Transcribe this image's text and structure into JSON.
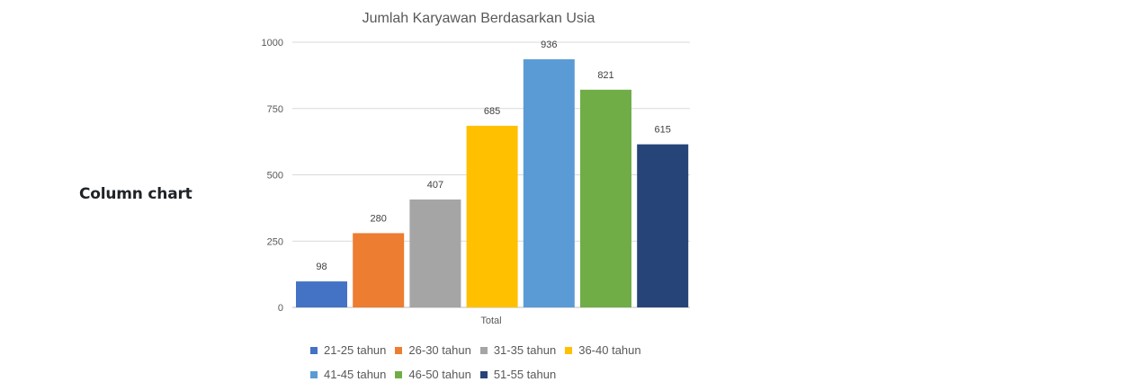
{
  "page": {
    "side_label": "Column chart"
  },
  "chart_data": {
    "type": "bar",
    "title": "Jumlah Karyawan Berdasarkan Usia",
    "xlabel": "",
    "ylabel": "",
    "categories": [
      "Total"
    ],
    "ylim": [
      0,
      1000
    ],
    "yticks": [
      0,
      250,
      500,
      750,
      1000
    ],
    "grid": true,
    "legend_position": "bottom",
    "series": [
      {
        "name": "21-25 tahun",
        "values": [
          98
        ],
        "color": "#4472C4"
      },
      {
        "name": "26-30 tahun",
        "values": [
          280
        ],
        "color": "#ED7D31"
      },
      {
        "name": "31-35 tahun",
        "values": [
          407
        ],
        "color": "#A5A5A5"
      },
      {
        "name": "36-40 tahun",
        "values": [
          685
        ],
        "color": "#FFC000"
      },
      {
        "name": "41-45 tahun",
        "values": [
          936
        ],
        "color": "#5B9BD5"
      },
      {
        "name": "46-50 tahun",
        "values": [
          821
        ],
        "color": "#70AD47"
      },
      {
        "name": "51-55 tahun",
        "values": [
          615
        ],
        "color": "#264478"
      }
    ]
  }
}
